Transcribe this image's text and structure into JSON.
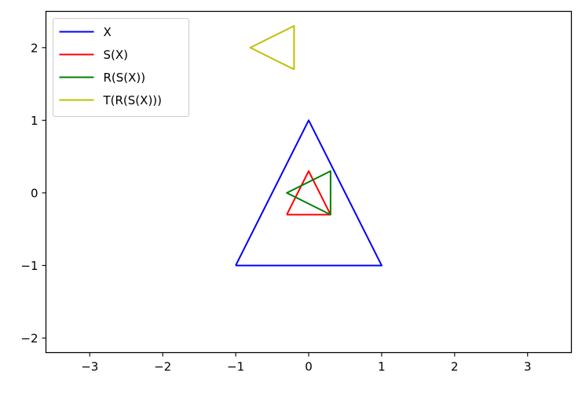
{
  "chart_data": {
    "type": "line",
    "title": "",
    "xlabel": "",
    "ylabel": "",
    "xlim": [
      -3.6,
      3.6
    ],
    "ylim": [
      -2.2,
      2.5
    ],
    "xticks": [
      -3,
      -2,
      -1,
      0,
      1,
      2,
      3
    ],
    "yticks": [
      -2,
      -1,
      0,
      1,
      2
    ],
    "xtick_labels": [
      "−3",
      "−2",
      "−1",
      "0",
      "1",
      "2",
      "3"
    ],
    "ytick_labels": [
      "−2",
      "−1",
      "0",
      "1",
      "2"
    ],
    "grid": false,
    "legend_position": "upper-left",
    "series": [
      {
        "name": "X",
        "color": "#0000ff",
        "x": [
          -1,
          1,
          0,
          -1
        ],
        "y": [
          -1,
          -1,
          1,
          -1
        ]
      },
      {
        "name": "S(X)",
        "color": "#ff0000",
        "x": [
          -0.3,
          0.3,
          0,
          -0.3
        ],
        "y": [
          -0.3,
          -0.3,
          0.3,
          -0.3
        ]
      },
      {
        "name": "R(S(X))",
        "color": "#008000",
        "x": [
          0.3,
          0.3,
          -0.3,
          0.3
        ],
        "y": [
          -0.3,
          0.3,
          0,
          -0.3
        ]
      },
      {
        "name": "T(R(S(X)))",
        "color": "#bfbf00",
        "x": [
          -0.2,
          -0.2,
          -0.8,
          -0.2
        ],
        "y": [
          1.7,
          2.3,
          2.0,
          1.7
        ]
      }
    ]
  }
}
